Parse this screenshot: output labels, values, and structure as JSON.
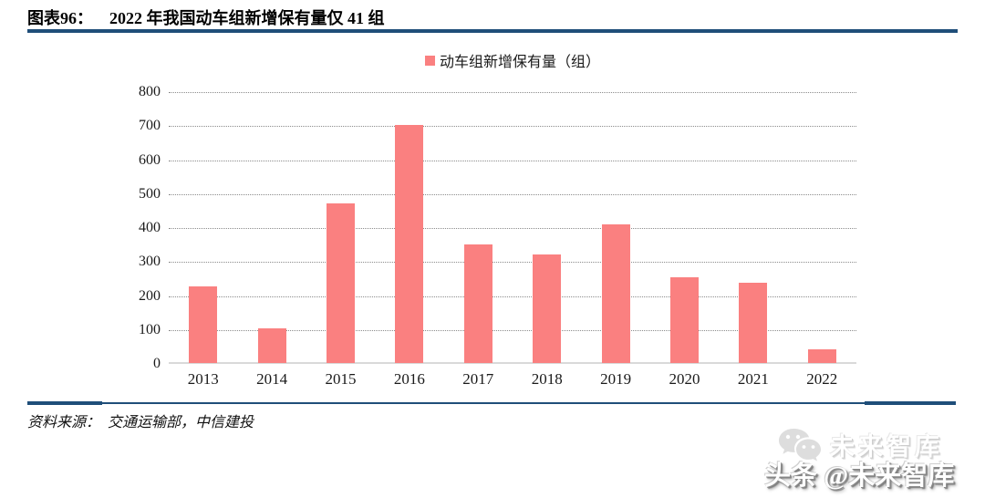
{
  "page": {
    "background": "#ffffff",
    "accent_navy": "#1F4E79"
  },
  "header": {
    "figure_label": "图表96：",
    "title": "2022 年我国动车组新增保有量仅 41 组"
  },
  "chart_data": {
    "type": "bar",
    "title": "",
    "legend_label": "动车组新增保有量（组）",
    "legend_position": "top-center",
    "categories": [
      "2013",
      "2014",
      "2015",
      "2016",
      "2017",
      "2018",
      "2019",
      "2020",
      "2021",
      "2022"
    ],
    "values": [
      225,
      102,
      470,
      700,
      348,
      320,
      408,
      253,
      235,
      41
    ],
    "xlabel": "",
    "ylabel": "",
    "ylim": [
      0,
      800
    ],
    "ytick_interval": 100,
    "grid": "horizontal-dotted",
    "bar_color": "#FA8080",
    "baseline_color": "#D9D9D9"
  },
  "footer": {
    "source_prefix": "资料来源：",
    "source_text": "交通运输部，中信建投"
  },
  "watermark": {
    "icon": "wechat-chat-bubbles-icon",
    "ghost_text": "未来智库",
    "main_text": "头条 @未来智库"
  }
}
